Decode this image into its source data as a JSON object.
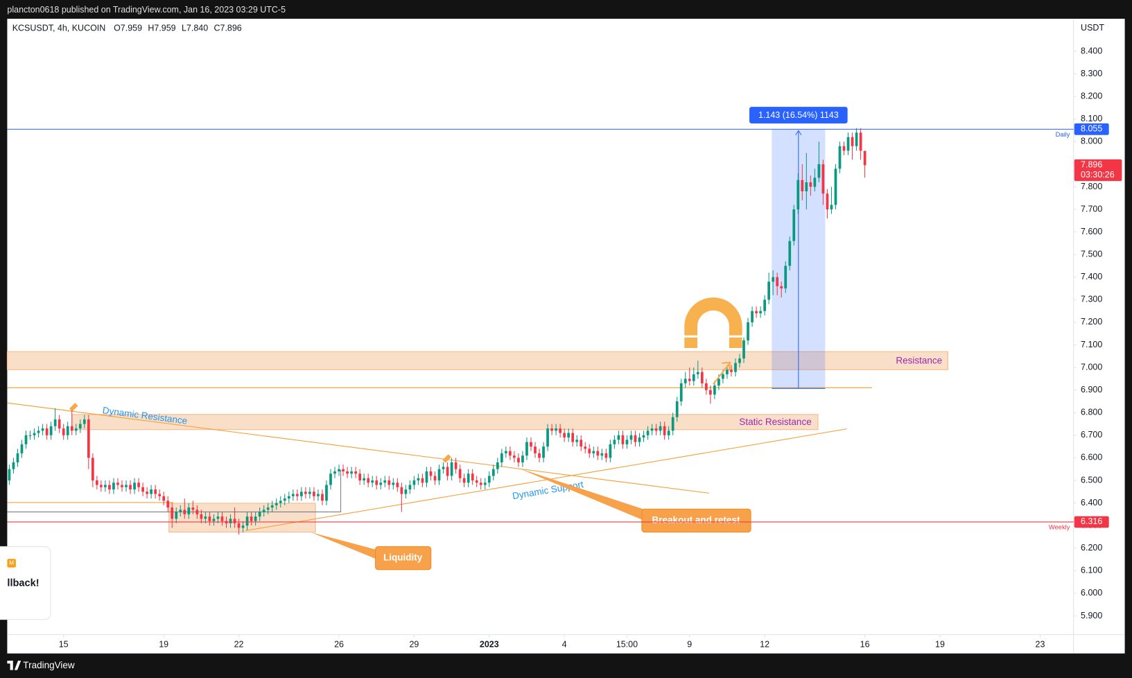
{
  "header": "plancton0618 published on TradingView.com, Jan 16, 2023 03:29 UTC-5",
  "footer": "TradingView",
  "widget": {
    "badge": "M",
    "text": "llback!"
  },
  "chart_data": {
    "type": "candlestick",
    "title": "KCSUSDT, 4h, KUCOIN",
    "ohlc_text": [
      "O7.959",
      "H7.959",
      "L7.840",
      "C7.896"
    ],
    "y_unit": "USDT",
    "up_color": "#089981",
    "down_color": "#f23645",
    "open": [
      6.5,
      6.55,
      6.58,
      6.62,
      6.66,
      6.7,
      6.7,
      6.71,
      6.72,
      6.73,
      6.7,
      6.74,
      6.77,
      6.73,
      6.7,
      6.74,
      6.72,
      6.73,
      6.75,
      6.77,
      6.6,
      6.5,
      6.48,
      6.47,
      6.48,
      6.46,
      6.49,
      6.48,
      6.47,
      6.48,
      6.46,
      6.49,
      6.47,
      6.45,
      6.44,
      6.46,
      6.44,
      6.43,
      6.41,
      6.38,
      6.33,
      6.36,
      6.37,
      6.35,
      6.38,
      6.37,
      6.35,
      6.33,
      6.34,
      6.32,
      6.33,
      6.34,
      6.32,
      6.31,
      6.33,
      6.31,
      6.29,
      6.3,
      6.34,
      6.32,
      6.34,
      6.36,
      6.37,
      6.38,
      6.39,
      6.4,
      6.41,
      6.42,
      6.43,
      6.44,
      6.43,
      6.45,
      6.44,
      6.45,
      6.43,
      6.44,
      6.41,
      6.48,
      6.53,
      6.54,
      6.55,
      6.54,
      6.53,
      6.54,
      6.53,
      6.5,
      6.51,
      6.49,
      6.5,
      6.48,
      6.49,
      6.5,
      6.48,
      6.49,
      6.47,
      6.44,
      6.46,
      6.48,
      6.5,
      6.51,
      6.49,
      6.54,
      6.52,
      6.5,
      6.55,
      6.56,
      6.52,
      6.58,
      6.55,
      6.51,
      6.49,
      6.53,
      6.5,
      6.49,
      6.48,
      6.49,
      6.52,
      6.55,
      6.58,
      6.62,
      6.63,
      6.61,
      6.6,
      6.58,
      6.61,
      6.67,
      6.65,
      6.62,
      6.6,
      6.65,
      6.73,
      6.72,
      6.73,
      6.71,
      6.69,
      6.71,
      6.67,
      6.68,
      6.65,
      6.64,
      6.62,
      6.63,
      6.61,
      6.62,
      6.6,
      6.66,
      6.68,
      6.7,
      6.66,
      6.68,
      6.7,
      6.67,
      6.69,
      6.7,
      6.72,
      6.73,
      6.72,
      6.74,
      6.7,
      6.72,
      6.78,
      6.85,
      6.93,
      6.95,
      6.94,
      6.97,
      6.98,
      6.93,
      6.9,
      6.88,
      6.92,
      6.95,
      6.97,
      6.99,
      6.98,
      7.02,
      7.04,
      7.12,
      7.2,
      7.25,
      7.24,
      7.25,
      7.3,
      7.38,
      7.4,
      7.36,
      7.35,
      7.45,
      7.56,
      7.7,
      7.83,
      7.78,
      7.82,
      7.8,
      7.84,
      7.9,
      7.77,
      7.7,
      7.72,
      7.88,
      7.98,
      7.96,
      8.02,
      7.98,
      8.04,
      7.959
    ],
    "high": [
      6.57,
      6.6,
      6.64,
      6.68,
      6.72,
      6.72,
      6.73,
      6.74,
      6.75,
      6.75,
      6.76,
      6.82,
      6.79,
      6.75,
      6.76,
      6.81,
      6.75,
      6.77,
      6.79,
      6.79,
      6.62,
      6.52,
      6.5,
      6.5,
      6.5,
      6.51,
      6.51,
      6.5,
      6.5,
      6.5,
      6.51,
      6.51,
      6.49,
      6.47,
      6.48,
      6.48,
      6.46,
      6.45,
      6.43,
      6.4,
      6.38,
      6.39,
      6.42,
      6.4,
      6.41,
      6.39,
      6.37,
      6.36,
      6.36,
      6.35,
      6.36,
      6.36,
      6.34,
      6.35,
      6.38,
      6.33,
      6.32,
      6.36,
      6.36,
      6.36,
      6.38,
      6.39,
      6.4,
      6.41,
      6.42,
      6.43,
      6.44,
      6.45,
      6.46,
      6.46,
      6.47,
      6.47,
      6.47,
      6.47,
      6.46,
      6.46,
      6.5,
      6.55,
      6.56,
      6.57,
      6.57,
      6.56,
      6.56,
      6.56,
      6.55,
      6.53,
      6.53,
      6.52,
      6.52,
      6.51,
      6.52,
      6.52,
      6.51,
      6.51,
      6.49,
      6.48,
      6.5,
      6.52,
      6.53,
      6.53,
      6.56,
      6.56,
      6.54,
      6.57,
      6.58,
      6.58,
      6.6,
      6.6,
      6.57,
      6.53,
      6.55,
      6.55,
      6.52,
      6.51,
      6.51,
      6.54,
      6.57,
      6.6,
      6.64,
      6.65,
      6.65,
      6.63,
      6.62,
      6.63,
      6.69,
      6.69,
      6.67,
      6.64,
      6.67,
      6.75,
      6.75,
      6.75,
      6.75,
      6.73,
      6.73,
      6.73,
      6.7,
      6.7,
      6.67,
      6.66,
      6.65,
      6.65,
      6.64,
      6.64,
      6.68,
      6.7,
      6.72,
      6.72,
      6.7,
      6.72,
      6.72,
      6.71,
      6.72,
      6.74,
      6.75,
      6.75,
      6.76,
      6.76,
      6.74,
      6.8,
      6.87,
      6.95,
      6.98,
      7.0,
      7.0,
      7.03,
      7.0,
      6.95,
      6.92,
      6.94,
      6.97,
      6.99,
      7.01,
      7.01,
      7.04,
      7.06,
      7.14,
      7.22,
      7.27,
      7.27,
      7.27,
      7.32,
      7.42,
      7.43,
      7.42,
      7.38,
      7.47,
      7.58,
      7.72,
      7.86,
      7.9,
      7.95,
      7.85,
      7.88,
      8.0,
      7.92,
      7.79,
      7.8,
      7.9,
      8.0,
      8.0,
      8.04,
      8.04,
      8.06,
      8.06,
      7.959
    ],
    "low": [
      6.48,
      6.53,
      6.56,
      6.6,
      6.64,
      6.68,
      6.68,
      6.69,
      6.7,
      6.68,
      6.68,
      6.72,
      6.71,
      6.68,
      6.68,
      6.7,
      6.7,
      6.71,
      6.73,
      6.55,
      6.47,
      6.46,
      6.45,
      6.45,
      6.44,
      6.44,
      6.46,
      6.45,
      6.45,
      6.44,
      6.44,
      6.45,
      6.43,
      6.42,
      6.42,
      6.42,
      6.41,
      6.39,
      6.36,
      6.29,
      6.31,
      6.34,
      6.33,
      6.33,
      6.35,
      6.33,
      6.31,
      6.31,
      6.3,
      6.3,
      6.31,
      6.3,
      6.29,
      6.29,
      6.29,
      6.26,
      6.27,
      6.28,
      6.3,
      6.3,
      6.32,
      6.34,
      6.35,
      6.36,
      6.37,
      6.38,
      6.39,
      6.4,
      6.41,
      6.41,
      6.41,
      6.42,
      6.42,
      6.41,
      6.41,
      6.39,
      6.39,
      6.46,
      6.51,
      6.52,
      6.52,
      6.51,
      6.51,
      6.51,
      6.48,
      6.48,
      6.47,
      6.47,
      6.46,
      6.46,
      6.47,
      6.46,
      6.46,
      6.45,
      6.36,
      6.42,
      6.44,
      6.46,
      6.48,
      6.47,
      6.47,
      6.5,
      6.48,
      6.48,
      6.53,
      6.5,
      6.5,
      6.53,
      6.49,
      6.47,
      6.47,
      6.48,
      6.47,
      6.46,
      6.46,
      6.47,
      6.5,
      6.53,
      6.56,
      6.6,
      6.59,
      6.58,
      6.56,
      6.56,
      6.59,
      6.63,
      6.6,
      6.58,
      6.58,
      6.63,
      6.7,
      6.7,
      6.69,
      6.67,
      6.67,
      6.65,
      6.65,
      6.63,
      6.62,
      6.6,
      6.6,
      6.59,
      6.59,
      6.58,
      6.58,
      6.64,
      6.66,
      6.64,
      6.64,
      6.66,
      6.65,
      6.65,
      6.67,
      6.68,
      6.7,
      6.7,
      6.7,
      6.68,
      6.68,
      6.7,
      6.76,
      6.83,
      6.91,
      6.92,
      6.92,
      6.95,
      6.91,
      6.88,
      6.84,
      6.86,
      6.9,
      6.93,
      6.95,
      6.96,
      6.96,
      7.0,
      7.02,
      7.1,
      7.18,
      7.22,
      7.22,
      7.23,
      7.28,
      7.32,
      7.32,
      7.31,
      7.33,
      7.43,
      7.54,
      7.68,
      7.74,
      7.7,
      7.76,
      7.78,
      7.82,
      7.72,
      7.66,
      7.68,
      7.7,
      7.86,
      7.94,
      7.94,
      7.92,
      7.96,
      7.92,
      7.84
    ],
    "close": [
      6.55,
      6.58,
      6.62,
      6.66,
      6.7,
      6.7,
      6.71,
      6.72,
      6.73,
      6.7,
      6.74,
      6.77,
      6.73,
      6.7,
      6.74,
      6.72,
      6.73,
      6.75,
      6.77,
      6.6,
      6.5,
      6.48,
      6.47,
      6.48,
      6.46,
      6.49,
      6.48,
      6.47,
      6.48,
      6.46,
      6.49,
      6.47,
      6.45,
      6.44,
      6.46,
      6.44,
      6.43,
      6.41,
      6.38,
      6.33,
      6.36,
      6.37,
      6.35,
      6.38,
      6.37,
      6.35,
      6.33,
      6.34,
      6.32,
      6.33,
      6.34,
      6.32,
      6.31,
      6.33,
      6.31,
      6.29,
      6.3,
      6.34,
      6.32,
      6.34,
      6.36,
      6.37,
      6.38,
      6.39,
      6.4,
      6.41,
      6.42,
      6.43,
      6.44,
      6.43,
      6.45,
      6.44,
      6.45,
      6.43,
      6.44,
      6.41,
      6.48,
      6.53,
      6.54,
      6.55,
      6.54,
      6.53,
      6.54,
      6.53,
      6.5,
      6.51,
      6.49,
      6.5,
      6.48,
      6.49,
      6.5,
      6.48,
      6.49,
      6.47,
      6.44,
      6.46,
      6.48,
      6.5,
      6.51,
      6.49,
      6.54,
      6.52,
      6.5,
      6.55,
      6.56,
      6.52,
      6.58,
      6.55,
      6.51,
      6.49,
      6.53,
      6.5,
      6.49,
      6.48,
      6.49,
      6.52,
      6.55,
      6.58,
      6.62,
      6.63,
      6.61,
      6.6,
      6.58,
      6.61,
      6.67,
      6.65,
      6.62,
      6.6,
      6.65,
      6.73,
      6.72,
      6.73,
      6.71,
      6.69,
      6.71,
      6.67,
      6.68,
      6.65,
      6.64,
      6.62,
      6.63,
      6.61,
      6.62,
      6.6,
      6.66,
      6.68,
      6.7,
      6.66,
      6.68,
      6.7,
      6.67,
      6.69,
      6.7,
      6.72,
      6.73,
      6.72,
      6.74,
      6.7,
      6.72,
      6.78,
      6.85,
      6.93,
      6.95,
      6.94,
      6.97,
      6.98,
      6.93,
      6.9,
      6.88,
      6.92,
      6.95,
      6.97,
      6.99,
      6.98,
      7.02,
      7.04,
      7.12,
      7.2,
      7.25,
      7.24,
      7.25,
      7.3,
      7.38,
      7.4,
      7.36,
      7.35,
      7.45,
      7.56,
      7.7,
      7.83,
      7.78,
      7.82,
      7.8,
      7.84,
      7.9,
      7.77,
      7.7,
      7.72,
      7.88,
      7.98,
      7.96,
      8.02,
      7.98,
      8.04,
      7.96,
      7.896
    ],
    "xlim": [
      -0.5,
      255
    ],
    "xticks": [
      {
        "value": 13,
        "label": "15"
      },
      {
        "value": 37,
        "label": "19"
      },
      {
        "value": 55,
        "label": "22"
      },
      {
        "value": 79,
        "label": "26"
      },
      {
        "value": 97,
        "label": "29"
      },
      {
        "value": 115,
        "label": "2023"
      },
      {
        "value": 133,
        "label": "4"
      },
      {
        "value": 148,
        "label": "15:00"
      },
      {
        "value": 163,
        "label": "9"
      },
      {
        "value": 181,
        "label": "12"
      },
      {
        "value": 205,
        "label": "16"
      },
      {
        "value": 223,
        "label": "19"
      },
      {
        "value": 247,
        "label": "23"
      }
    ],
    "ylim": [
      5.817,
      8.544
    ],
    "yticks": [
      {
        "value": 5.9,
        "label": "5.900"
      },
      {
        "value": 6.0,
        "label": "6.000"
      },
      {
        "value": 6.1,
        "label": "6.100"
      },
      {
        "value": 6.2,
        "label": "6.200"
      },
      {
        "value": 6.3,
        "label": "6.300"
      },
      {
        "value": 6.4,
        "label": "6.400"
      },
      {
        "value": 6.5,
        "label": "6.500"
      },
      {
        "value": 6.6,
        "label": "6.600"
      },
      {
        "value": 6.7,
        "label": "6.700"
      },
      {
        "value": 6.8,
        "label": "6.800"
      },
      {
        "value": 6.9,
        "label": "6.900"
      },
      {
        "value": 7.0,
        "label": "7.000"
      },
      {
        "value": 7.1,
        "label": "7.100"
      },
      {
        "value": 7.2,
        "label": "7.200"
      },
      {
        "value": 7.3,
        "label": "7.300"
      },
      {
        "value": 7.4,
        "label": "7.400"
      },
      {
        "value": 7.5,
        "label": "7.500"
      },
      {
        "value": 7.6,
        "label": "7.600"
      },
      {
        "value": 7.7,
        "label": "7.700"
      },
      {
        "value": 7.8,
        "label": "7.800"
      },
      {
        "value": 7.9,
        "label": "7.900"
      },
      {
        "value": 8.0,
        "label": "8.000"
      },
      {
        "value": 8.1,
        "label": "8.100"
      },
      {
        "value": 8.2,
        "label": "8.200"
      },
      {
        "value": 8.3,
        "label": "8.300"
      },
      {
        "value": 8.4,
        "label": "8.400"
      }
    ],
    "grid": false,
    "levels": [
      {
        "value": 8.055,
        "name": "Daily",
        "color": "#2962ff"
      },
      {
        "value": 6.316,
        "name": "Weekly",
        "color": "#f23645"
      }
    ],
    "last_price": {
      "value": 7.896,
      "countdown": "03:30:26",
      "color": "#f23645"
    },
    "measure": "1.143 (16.54%) 1143",
    "annotations": {
      "resistance": "Resistance",
      "static_resistance": "Static Resistance",
      "dynamic_resistance": "Dynamic Resistance",
      "dynamic_support": "Dynamic Support",
      "liquidity": "Liquidity",
      "breakout": "Breakout and retest"
    }
  }
}
